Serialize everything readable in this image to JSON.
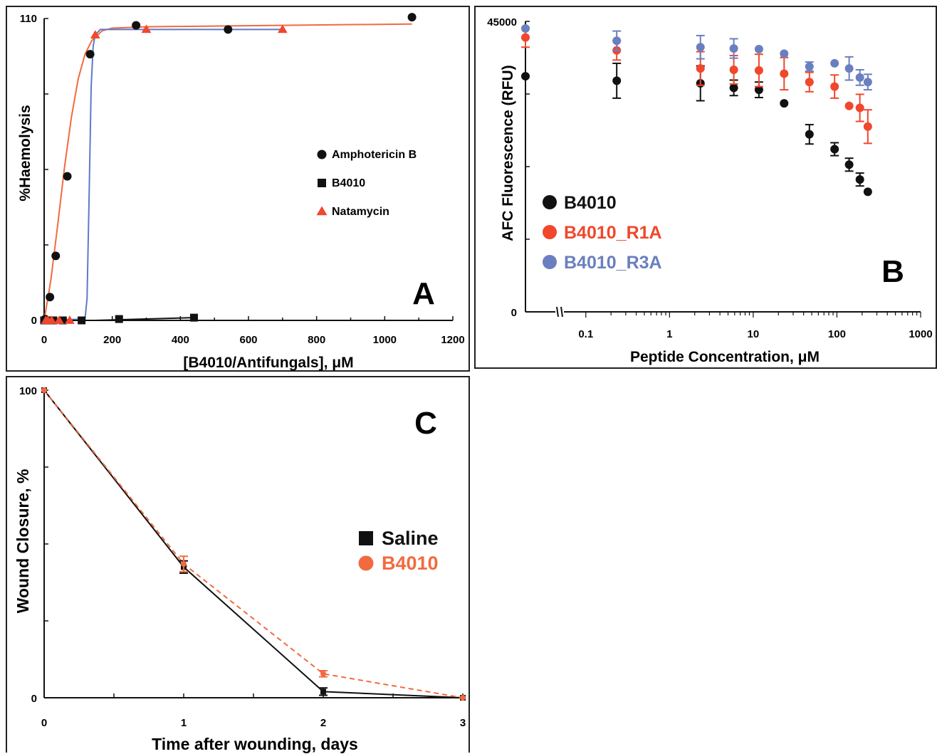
{
  "colors": {
    "black": "#111111",
    "red": "#f0472d",
    "orange": "#f26a3f",
    "blue": "#6a7fbf",
    "lineBlue": "#5f79c8"
  },
  "chart_data": [
    {
      "panel": "A",
      "type": "scatter",
      "panel_label": "A",
      "xlabel": "[B4010/Antifungals], μM",
      "ylabel": "%Haemolysis",
      "xlim": [
        0,
        1200
      ],
      "ylim": [
        0,
        110
      ],
      "x_ticks": [
        "0",
        "200",
        "400",
        "600",
        "800",
        "1000",
        "1200"
      ],
      "y_ticks": [
        "0",
        "110"
      ],
      "legend_position": "right",
      "series": [
        {
          "name": "Amphotericin B",
          "marker": "circle",
          "color": "#111111",
          "x": [
            3,
            17,
            34,
            68,
            135,
            270,
            540,
            1080
          ],
          "y": [
            0.5,
            8.5,
            23.5,
            52.5,
            97,
            107.5,
            106,
            110.5
          ]
        },
        {
          "name": "B4010",
          "marker": "square",
          "color": "#111111",
          "x": [
            0,
            14,
            27,
            55,
            110,
            220,
            440
          ],
          "y": [
            0,
            0,
            0,
            0,
            0,
            0.5,
            1
          ]
        },
        {
          "name": "Natamycin",
          "marker": "triangle",
          "color": "#f0472d",
          "x": [
            5,
            11,
            22,
            44,
            75,
            150,
            300,
            700
          ],
          "y": [
            0,
            0,
            0,
            0,
            0,
            104,
            106,
            106
          ]
        }
      ],
      "fit_curves": [
        {
          "color": "#f26a3f",
          "x": [
            0,
            20,
            40,
            60,
            80,
            100,
            120,
            140,
            170,
            200,
            300,
            1080
          ],
          "y": [
            0,
            15,
            35,
            56,
            74,
            88,
            97,
            102,
            105.5,
            106.5,
            107,
            108
          ]
        },
        {
          "color": "#5f79c8",
          "x": [
            0,
            120,
            126,
            132,
            138,
            144,
            150,
            165,
            700
          ],
          "y": [
            0,
            0.5,
            8,
            45,
            85,
            100,
            104,
            106,
            106
          ]
        },
        {
          "color": "#111111",
          "x": [
            0,
            150,
            440
          ],
          "y": [
            0,
            0,
            1
          ]
        }
      ]
    },
    {
      "panel": "B",
      "type": "scatter",
      "panel_label": "B",
      "xlabel": "Peptide Concentration, μM",
      "ylabel": "AFC Fluorescence (RFU)",
      "x_scale": "log",
      "xlim": [
        0.04,
        1000
      ],
      "ylim": [
        0,
        45000
      ],
      "x_ticks": [
        "0.1",
        "1",
        "10",
        "100",
        "1000"
      ],
      "y_ticks": [
        "0",
        "45000"
      ],
      "axis_break": true,
      "legend_position": "left",
      "series": [
        {
          "name": "B4010",
          "marker": "circle",
          "color": "#111111",
          "x": [
            0,
            0.234,
            2.34,
            5.86,
            11.7,
            23.4,
            46.9,
            93.8,
            140,
            188,
            234
          ],
          "y": [
            36500,
            35800,
            35400,
            34700,
            34400,
            32300,
            27500,
            25200,
            22800,
            20500,
            18600
          ],
          "err": [
            null,
            2700,
            2700,
            1200,
            1200,
            null,
            1500,
            1000,
            1000,
            1000,
            null
          ]
        },
        {
          "name": "B4010_R1A",
          "marker": "circle",
          "color": "#f0472d",
          "x": [
            0,
            0.234,
            2.34,
            5.86,
            11.7,
            23.4,
            46.9,
            93.8,
            140,
            188,
            234
          ],
          "y": [
            42500,
            40500,
            37700,
            37500,
            37400,
            36900,
            35600,
            34900,
            31900,
            31600,
            28700
          ],
          "err": [
            1500,
            1500,
            2600,
            2200,
            2500,
            2500,
            1500,
            1800,
            null,
            2100,
            2600
          ]
        },
        {
          "name": "B4010_R3A",
          "marker": "circle",
          "color": "#6a7fbf",
          "x": [
            0,
            0.234,
            2.34,
            5.86,
            11.7,
            23.4,
            46.9,
            93.8,
            140,
            188,
            234
          ],
          "y": [
            43900,
            42000,
            41000,
            40800,
            40700,
            40000,
            38000,
            38500,
            37700,
            36300,
            35600
          ],
          "err": [
            null,
            1500,
            1800,
            1500,
            null,
            null,
            700,
            null,
            1800,
            1200,
            1200
          ]
        }
      ]
    },
    {
      "panel": "C",
      "type": "line",
      "panel_label": "C",
      "xlabel": "Time after wounding, days",
      "ylabel": "Wound Closure, %",
      "xlim": [
        0,
        3
      ],
      "ylim": [
        0,
        100
      ],
      "x_ticks": [
        "0",
        "1",
        "2",
        "3"
      ],
      "y_ticks": [
        "0",
        "100"
      ],
      "legend_position": "right",
      "series": [
        {
          "name": "Saline",
          "marker": "square",
          "color": "#111111",
          "line": "solid",
          "x": [
            0,
            1,
            2,
            3
          ],
          "y": [
            100,
            42.5,
            2,
            0
          ],
          "err": [
            0,
            2,
            1.2,
            0
          ]
        },
        {
          "name": "B4010",
          "marker": "circle",
          "color": "#f26a3f",
          "line": "dashed",
          "x": [
            0,
            1,
            2,
            3
          ],
          "y": [
            100,
            43.5,
            7.8,
            0
          ],
          "err": [
            0,
            2.5,
            1,
            0
          ]
        }
      ]
    }
  ]
}
